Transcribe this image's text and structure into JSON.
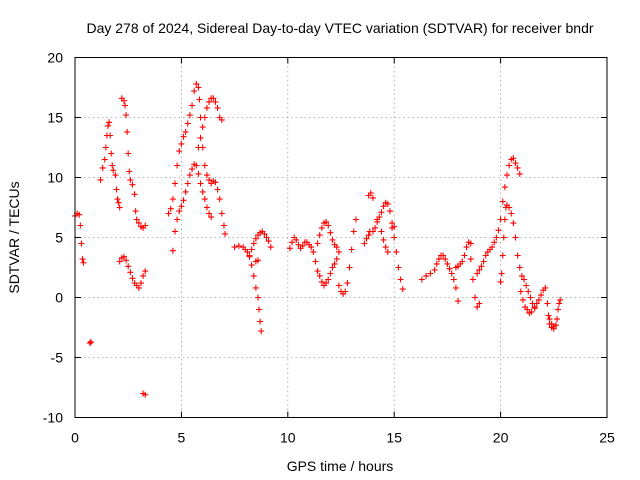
{
  "chart_data": {
    "type": "scatter",
    "title": "Day 278 of 2024, Sidereal Day-to-day VTEC variation (SDTVAR) for receiver bndr",
    "xlabel": "GPS time / hours",
    "ylabel": "SDTVAR / TECUs",
    "xlim": [
      0,
      25
    ],
    "ylim": [
      -10,
      20
    ],
    "xticks": [
      0,
      5,
      10,
      15,
      20,
      25
    ],
    "yticks": [
      -10,
      -5,
      0,
      5,
      10,
      15,
      20
    ],
    "xtick_labels": [
      "0",
      "5",
      "10",
      "15",
      "20",
      "25"
    ],
    "ytick_labels": [
      "-10",
      "-5",
      "0",
      "5",
      "10",
      "15",
      "20"
    ],
    "grid": true,
    "marker": "+",
    "color": "#ff0000",
    "series": [
      {
        "name": "bndr",
        "points": [
          [
            0.0,
            6.8
          ],
          [
            0.1,
            7.0
          ],
          [
            0.2,
            6.9
          ],
          [
            0.25,
            6.0
          ],
          [
            0.3,
            4.5
          ],
          [
            0.35,
            3.2
          ],
          [
            0.4,
            2.9
          ],
          [
            0.7,
            -3.8
          ],
          [
            0.75,
            -3.7
          ],
          [
            1.2,
            9.8
          ],
          [
            1.3,
            10.8
          ],
          [
            1.4,
            11.5
          ],
          [
            1.45,
            12.5
          ],
          [
            1.5,
            13.5
          ],
          [
            1.55,
            14.3
          ],
          [
            1.6,
            14.6
          ],
          [
            1.65,
            13.5
          ],
          [
            1.7,
            12.0
          ],
          [
            1.75,
            11.0
          ],
          [
            1.8,
            10.6
          ],
          [
            1.9,
            10.2
          ],
          [
            1.95,
            9.0
          ],
          [
            2.0,
            8.2
          ],
          [
            2.05,
            7.9
          ],
          [
            2.1,
            7.5
          ],
          [
            2.2,
            16.6
          ],
          [
            2.3,
            16.4
          ],
          [
            2.35,
            16.0
          ],
          [
            2.4,
            15.2
          ],
          [
            2.45,
            13.8
          ],
          [
            2.5,
            12.0
          ],
          [
            2.55,
            10.5
          ],
          [
            2.6,
            9.8
          ],
          [
            2.7,
            9.4
          ],
          [
            2.8,
            8.6
          ],
          [
            2.85,
            7.2
          ],
          [
            2.9,
            6.5
          ],
          [
            3.0,
            6.2
          ],
          [
            3.1,
            5.9
          ],
          [
            3.2,
            5.8
          ],
          [
            3.3,
            6.0
          ],
          [
            2.1,
            3.0
          ],
          [
            2.2,
            3.3
          ],
          [
            2.3,
            3.4
          ],
          [
            2.4,
            3.1
          ],
          [
            2.5,
            2.6
          ],
          [
            2.6,
            2.1
          ],
          [
            2.7,
            1.6
          ],
          [
            2.8,
            1.2
          ],
          [
            2.9,
            1.0
          ],
          [
            3.0,
            0.8
          ],
          [
            3.1,
            1.2
          ],
          [
            3.2,
            1.8
          ],
          [
            3.3,
            2.2
          ],
          [
            3.2,
            -8.0
          ],
          [
            3.3,
            -8.1
          ],
          [
            4.4,
            7.0
          ],
          [
            4.5,
            7.4
          ],
          [
            4.6,
            8.2
          ],
          [
            4.7,
            9.5
          ],
          [
            4.8,
            11.0
          ],
          [
            4.9,
            12.2
          ],
          [
            5.0,
            12.8
          ],
          [
            5.1,
            13.4
          ],
          [
            5.2,
            13.8
          ],
          [
            5.3,
            14.5
          ],
          [
            5.4,
            15.2
          ],
          [
            5.5,
            16.0
          ],
          [
            5.6,
            17.2
          ],
          [
            5.7,
            17.8
          ],
          [
            5.8,
            17.5
          ],
          [
            5.85,
            16.5
          ],
          [
            5.9,
            15.0
          ],
          [
            6.0,
            12.5
          ],
          [
            6.1,
            11.0
          ],
          [
            6.2,
            10.2
          ],
          [
            6.3,
            9.8
          ],
          [
            6.4,
            9.5
          ],
          [
            6.5,
            9.7
          ],
          [
            6.6,
            9.6
          ],
          [
            6.7,
            9.0
          ],
          [
            6.8,
            8.2
          ],
          [
            6.9,
            7.0
          ],
          [
            7.0,
            6.0
          ],
          [
            7.05,
            5.3
          ],
          [
            4.6,
            3.9
          ],
          [
            4.7,
            5.5
          ],
          [
            4.8,
            6.5
          ],
          [
            4.9,
            7.2
          ],
          [
            5.0,
            7.6
          ],
          [
            5.1,
            8.1
          ],
          [
            5.2,
            8.8
          ],
          [
            5.3,
            9.5
          ],
          [
            5.4,
            10.2
          ],
          [
            5.5,
            10.7
          ],
          [
            5.6,
            11.1
          ],
          [
            5.7,
            11.0
          ],
          [
            5.8,
            10.3
          ],
          [
            5.9,
            9.5
          ],
          [
            6.0,
            8.8
          ],
          [
            6.1,
            8.2
          ],
          [
            6.2,
            7.5
          ],
          [
            6.3,
            7.0
          ],
          [
            6.4,
            6.7
          ],
          [
            5.8,
            12.5
          ],
          [
            5.9,
            13.3
          ],
          [
            6.0,
            14.2
          ],
          [
            6.1,
            15.0
          ],
          [
            6.2,
            15.8
          ],
          [
            6.3,
            16.3
          ],
          [
            6.4,
            16.6
          ],
          [
            6.5,
            16.6
          ],
          [
            6.6,
            16.3
          ],
          [
            6.7,
            15.8
          ],
          [
            6.8,
            15.0
          ],
          [
            6.9,
            14.8
          ],
          [
            7.5,
            4.2
          ],
          [
            7.7,
            4.3
          ],
          [
            7.9,
            4.2
          ],
          [
            8.0,
            4.0
          ],
          [
            8.1,
            3.8
          ],
          [
            8.2,
            3.4
          ],
          [
            8.3,
            2.7
          ],
          [
            8.4,
            1.8
          ],
          [
            8.5,
            0.8
          ],
          [
            8.6,
            0.0
          ],
          [
            8.65,
            -1.0
          ],
          [
            8.7,
            -2.0
          ],
          [
            8.75,
            -2.8
          ],
          [
            8.2,
            3.5
          ],
          [
            8.3,
            4.0
          ],
          [
            8.4,
            4.5
          ],
          [
            8.5,
            4.9
          ],
          [
            8.6,
            5.2
          ],
          [
            8.7,
            5.4
          ],
          [
            8.8,
            5.5
          ],
          [
            8.9,
            5.3
          ],
          [
            9.0,
            5.0
          ],
          [
            9.1,
            4.7
          ],
          [
            9.2,
            4.2
          ],
          [
            8.5,
            3.0
          ],
          [
            8.6,
            3.1
          ],
          [
            10.1,
            4.1
          ],
          [
            10.2,
            4.6
          ],
          [
            10.3,
            5.0
          ],
          [
            10.4,
            4.8
          ],
          [
            10.5,
            4.4
          ],
          [
            10.6,
            4.1
          ],
          [
            10.7,
            4.3
          ],
          [
            10.8,
            4.6
          ],
          [
            10.9,
            4.6
          ],
          [
            11.0,
            4.4
          ],
          [
            11.1,
            4.2
          ],
          [
            11.2,
            3.8
          ],
          [
            11.3,
            3.0
          ],
          [
            11.4,
            2.2
          ],
          [
            11.5,
            1.8
          ],
          [
            11.6,
            1.3
          ],
          [
            11.7,
            1.0
          ],
          [
            11.8,
            1.2
          ],
          [
            11.9,
            1.5
          ],
          [
            12.0,
            2.0
          ],
          [
            12.1,
            2.5
          ],
          [
            12.2,
            2.8
          ],
          [
            11.4,
            4.5
          ],
          [
            11.5,
            5.2
          ],
          [
            11.6,
            5.8
          ],
          [
            11.7,
            6.2
          ],
          [
            11.8,
            6.3
          ],
          [
            11.9,
            6.0
          ],
          [
            12.0,
            5.4
          ],
          [
            12.1,
            4.8
          ],
          [
            12.2,
            4.4
          ],
          [
            12.3,
            4.2
          ],
          [
            12.4,
            3.8
          ],
          [
            12.3,
            3.2
          ],
          [
            12.4,
            1.0
          ],
          [
            12.5,
            0.5
          ],
          [
            12.6,
            0.3
          ],
          [
            12.7,
            0.5
          ],
          [
            12.8,
            1.2
          ],
          [
            12.9,
            2.5
          ],
          [
            13.0,
            4.0
          ],
          [
            13.1,
            5.5
          ],
          [
            13.2,
            6.5
          ],
          [
            13.6,
            4.5
          ],
          [
            13.7,
            4.9
          ],
          [
            13.8,
            5.2
          ],
          [
            13.85,
            5.5
          ],
          [
            13.8,
            8.5
          ],
          [
            13.9,
            8.7
          ],
          [
            14.0,
            8.3
          ],
          [
            14.0,
            5.5
          ],
          [
            14.1,
            5.8
          ],
          [
            14.2,
            6.3
          ],
          [
            14.3,
            6.7
          ],
          [
            14.4,
            7.1
          ],
          [
            14.5,
            7.6
          ],
          [
            14.6,
            7.9
          ],
          [
            14.7,
            7.8
          ],
          [
            14.8,
            7.2
          ],
          [
            14.9,
            6.2
          ],
          [
            15.0,
            5.0
          ],
          [
            15.1,
            3.8
          ],
          [
            15.2,
            2.5
          ],
          [
            15.3,
            1.5
          ],
          [
            15.4,
            0.7
          ],
          [
            14.2,
            6.5
          ],
          [
            14.4,
            5.5
          ],
          [
            14.5,
            4.8
          ],
          [
            14.6,
            4.2
          ],
          [
            14.7,
            3.8
          ],
          [
            14.9,
            5.8
          ],
          [
            15.0,
            5.9
          ],
          [
            16.3,
            1.5
          ],
          [
            16.5,
            1.8
          ],
          [
            16.7,
            2.0
          ],
          [
            16.9,
            2.3
          ],
          [
            17.0,
            2.8
          ],
          [
            17.1,
            3.2
          ],
          [
            17.2,
            3.5
          ],
          [
            17.3,
            3.5
          ],
          [
            17.4,
            3.2
          ],
          [
            17.5,
            2.8
          ],
          [
            17.6,
            2.4
          ],
          [
            17.7,
            2.0
          ],
          [
            17.8,
            1.5
          ],
          [
            17.9,
            0.8
          ],
          [
            18.0,
            -0.3
          ],
          [
            17.9,
            2.5
          ],
          [
            18.0,
            2.6
          ],
          [
            18.1,
            2.8
          ],
          [
            18.2,
            3.0
          ],
          [
            18.3,
            3.5
          ],
          [
            18.4,
            4.2
          ],
          [
            18.5,
            4.6
          ],
          [
            18.6,
            4.5
          ],
          [
            18.6,
            3.2
          ],
          [
            18.7,
            1.5
          ],
          [
            18.8,
            0.0
          ],
          [
            18.9,
            -0.8
          ],
          [
            19.0,
            -0.5
          ],
          [
            18.9,
            2.0
          ],
          [
            19.0,
            2.3
          ],
          [
            19.1,
            2.6
          ],
          [
            19.2,
            3.0
          ],
          [
            19.3,
            3.5
          ],
          [
            19.4,
            3.8
          ],
          [
            19.5,
            4.0
          ],
          [
            19.6,
            4.2
          ],
          [
            19.7,
            4.6
          ],
          [
            19.8,
            5.0
          ],
          [
            19.9,
            5.6
          ],
          [
            20.0,
            6.5
          ],
          [
            20.1,
            8.0
          ],
          [
            20.2,
            9.2
          ],
          [
            20.3,
            10.2
          ],
          [
            20.4,
            11.0
          ],
          [
            20.5,
            11.5
          ],
          [
            20.6,
            11.6
          ],
          [
            20.7,
            11.2
          ],
          [
            20.8,
            10.8
          ],
          [
            20.9,
            10.3
          ],
          [
            20.0,
            1.3
          ],
          [
            20.05,
            2.0
          ],
          [
            20.1,
            3.5
          ],
          [
            20.15,
            5.0
          ],
          [
            20.2,
            6.5
          ],
          [
            20.25,
            7.5
          ],
          [
            20.3,
            7.7
          ],
          [
            20.4,
            7.5
          ],
          [
            20.5,
            7.0
          ],
          [
            20.6,
            6.2
          ],
          [
            20.7,
            5.0
          ],
          [
            20.8,
            3.5
          ],
          [
            20.9,
            2.5
          ],
          [
            21.0,
            1.8
          ],
          [
            21.1,
            1.5
          ],
          [
            21.2,
            1.0
          ],
          [
            21.3,
            0.5
          ],
          [
            21.4,
            0.0
          ],
          [
            21.5,
            -0.5
          ],
          [
            21.6,
            -0.9
          ],
          [
            20.95,
            0.5
          ],
          [
            21.05,
            -0.2
          ],
          [
            21.15,
            -0.8
          ],
          [
            21.25,
            -1.0
          ],
          [
            21.35,
            -1.3
          ],
          [
            21.45,
            -1.2
          ],
          [
            21.6,
            -0.8
          ],
          [
            21.7,
            -0.5
          ],
          [
            21.8,
            -0.2
          ],
          [
            21.9,
            0.2
          ],
          [
            22.0,
            0.6
          ],
          [
            22.1,
            0.8
          ],
          [
            22.2,
            -0.5
          ],
          [
            22.25,
            -1.5
          ],
          [
            22.3,
            -2.2
          ],
          [
            22.4,
            -2.5
          ],
          [
            22.5,
            -2.6
          ],
          [
            22.6,
            -2.3
          ],
          [
            22.65,
            -1.8
          ],
          [
            22.7,
            -1.0
          ],
          [
            22.75,
            -0.5
          ],
          [
            22.8,
            -0.2
          ],
          [
            22.3,
            -1.8
          ],
          [
            22.4,
            -2.2
          ],
          [
            22.5,
            -2.4
          ]
        ]
      }
    ]
  }
}
